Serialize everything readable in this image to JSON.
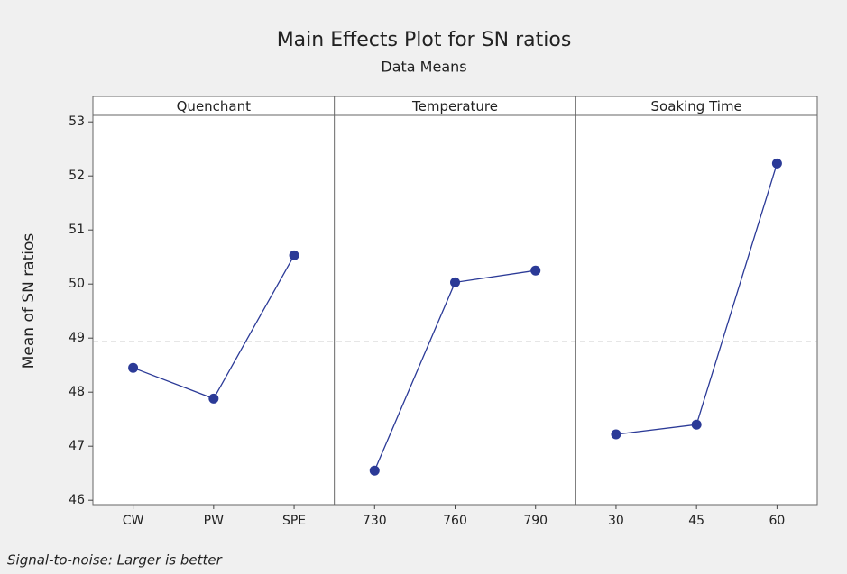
{
  "chart_data": {
    "type": "line",
    "title": "Main Effects Plot for SN ratios",
    "subtitle": "Data Means",
    "y_label": "Mean of SN ratios",
    "footnote": "Signal-to-noise: Larger is better",
    "color": "#2b3a97",
    "reference_line": 48.93,
    "reference_color": "#999999",
    "ylim": [
      45.92,
      53.12
    ],
    "yticks": [
      46,
      47,
      48,
      49,
      50,
      51,
      52,
      53
    ],
    "panels": [
      {
        "title": "Quenchant",
        "categories": [
          "CW",
          "PW",
          "SPE"
        ],
        "values": [
          48.45,
          47.88,
          50.53
        ]
      },
      {
        "title": "Temperature",
        "categories": [
          "730",
          "760",
          "790"
        ],
        "values": [
          46.55,
          50.03,
          50.25
        ]
      },
      {
        "title": "Soaking Time",
        "categories": [
          "30",
          "45",
          "60"
        ],
        "values": [
          47.22,
          47.4,
          52.23
        ]
      }
    ]
  }
}
